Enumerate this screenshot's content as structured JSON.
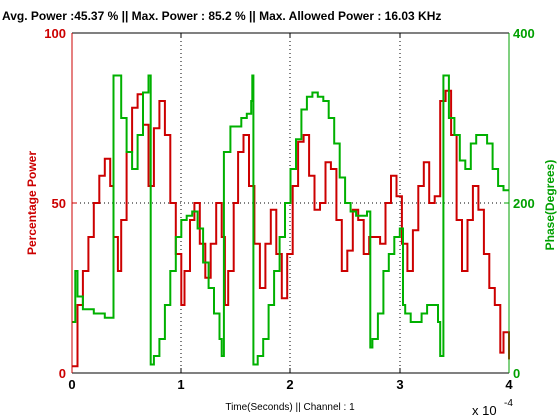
{
  "chart_data": {
    "type": "line",
    "title": "Avg. Power :45.37 %  || Max. Power : 85.2 %  || Max. Allowed Power : 16.03 KHz",
    "xlabel": "Time(Seconds) || Channel : 1",
    "x_exponent_label": "x 10",
    "x_exponent_power": "-4",
    "ylabel_left": "Percentage Power",
    "ylabel_right": "Phase(Degrees)",
    "xlim": [
      0,
      4
    ],
    "ylim_left": [
      0,
      100
    ],
    "ylim_right": [
      0,
      400
    ],
    "x_ticks": [
      "0",
      "1",
      "2",
      "3",
      "4"
    ],
    "y_left_ticks": [
      "0",
      "50",
      "100"
    ],
    "y_right_ticks": [
      "0",
      "200",
      "400"
    ],
    "grid": "dotted",
    "colors": {
      "power": "#cc0000",
      "phase": "#00b000",
      "axes": "#000000"
    },
    "series": [
      {
        "axis": "left",
        "points": [
          [
            0.0,
            2
          ],
          [
            0.05,
            20
          ],
          [
            0.1,
            30
          ],
          [
            0.15,
            40
          ],
          [
            0.2,
            50
          ],
          [
            0.25,
            58
          ],
          [
            0.3,
            63
          ],
          [
            0.35,
            55
          ],
          [
            0.38,
            40
          ],
          [
            0.42,
            30
          ],
          [
            0.45,
            45
          ],
          [
            0.5,
            65
          ],
          [
            0.55,
            78
          ],
          [
            0.6,
            82
          ],
          [
            0.65,
            73
          ],
          [
            0.7,
            55
          ],
          [
            0.75,
            72
          ],
          [
            0.8,
            80
          ],
          [
            0.85,
            70
          ],
          [
            0.9,
            50
          ],
          [
            0.95,
            35
          ],
          [
            1.0,
            20
          ],
          [
            1.03,
            30
          ],
          [
            1.08,
            45
          ],
          [
            1.12,
            50
          ],
          [
            1.17,
            38
          ],
          [
            1.22,
            28
          ],
          [
            1.27,
            38
          ],
          [
            1.32,
            50
          ],
          [
            1.37,
            40
          ],
          [
            1.4,
            20
          ],
          [
            1.43,
            30
          ],
          [
            1.48,
            50
          ],
          [
            1.52,
            65
          ],
          [
            1.57,
            70
          ],
          [
            1.62,
            55
          ],
          [
            1.67,
            38
          ],
          [
            1.72,
            25
          ],
          [
            1.77,
            38
          ],
          [
            1.82,
            48
          ],
          [
            1.87,
            35
          ],
          [
            1.92,
            22
          ],
          [
            1.97,
            35
          ],
          [
            2.02,
            55
          ],
          [
            2.07,
            68
          ],
          [
            2.12,
            70
          ],
          [
            2.17,
            58
          ],
          [
            2.22,
            48
          ],
          [
            2.27,
            50
          ],
          [
            2.32,
            62
          ],
          [
            2.37,
            60
          ],
          [
            2.42,
            45
          ],
          [
            2.47,
            30
          ],
          [
            2.52,
            36
          ],
          [
            2.57,
            48
          ],
          [
            2.62,
            45
          ],
          [
            2.67,
            35
          ],
          [
            2.72,
            40
          ],
          [
            2.77,
            40
          ],
          [
            2.82,
            38
          ],
          [
            2.87,
            50
          ],
          [
            2.92,
            58
          ],
          [
            2.97,
            52
          ],
          [
            3.02,
            38
          ],
          [
            3.07,
            30
          ],
          [
            3.12,
            42
          ],
          [
            3.17,
            55
          ],
          [
            3.22,
            62
          ],
          [
            3.27,
            50
          ],
          [
            3.32,
            52
          ],
          [
            3.37,
            80
          ],
          [
            3.42,
            83
          ],
          [
            3.47,
            70
          ],
          [
            3.52,
            45
          ],
          [
            3.57,
            30
          ],
          [
            3.62,
            45
          ],
          [
            3.67,
            55
          ],
          [
            3.72,
            48
          ],
          [
            3.77,
            35
          ],
          [
            3.82,
            25
          ],
          [
            3.87,
            20
          ],
          [
            3.92,
            6
          ],
          [
            3.95,
            12
          ],
          [
            4.0,
            4
          ]
        ]
      },
      {
        "axis": "right",
        "points": [
          [
            0.0,
            60
          ],
          [
            0.02,
            60
          ],
          [
            0.03,
            120
          ],
          [
            0.05,
            90
          ],
          [
            0.1,
            75
          ],
          [
            0.2,
            70
          ],
          [
            0.3,
            65
          ],
          [
            0.37,
            65
          ],
          [
            0.38,
            350
          ],
          [
            0.45,
            300
          ],
          [
            0.5,
            260
          ],
          [
            0.55,
            240
          ],
          [
            0.6,
            280
          ],
          [
            0.65,
            330
          ],
          [
            0.7,
            350
          ],
          [
            0.72,
            10
          ],
          [
            0.73,
            10
          ],
          [
            0.75,
            20
          ],
          [
            0.8,
            40
          ],
          [
            0.85,
            80
          ],
          [
            0.9,
            120
          ],
          [
            0.95,
            160
          ],
          [
            1.0,
            180
          ],
          [
            1.05,
            185
          ],
          [
            1.1,
            190
          ],
          [
            1.15,
            170
          ],
          [
            1.2,
            130
          ],
          [
            1.25,
            100
          ],
          [
            1.3,
            70
          ],
          [
            1.35,
            40
          ],
          [
            1.37,
            20
          ],
          [
            1.38,
            20
          ],
          [
            1.39,
            260
          ],
          [
            1.45,
            290
          ],
          [
            1.5,
            290
          ],
          [
            1.55,
            300
          ],
          [
            1.6,
            305
          ],
          [
            1.64,
            320
          ],
          [
            1.65,
            350
          ],
          [
            1.66,
            10
          ],
          [
            1.7,
            20
          ],
          [
            1.75,
            40
          ],
          [
            1.8,
            80
          ],
          [
            1.85,
            120
          ],
          [
            1.9,
            160
          ],
          [
            1.95,
            200
          ],
          [
            2.0,
            240
          ],
          [
            2.05,
            275
          ],
          [
            2.1,
            310
          ],
          [
            2.15,
            325
          ],
          [
            2.2,
            330
          ],
          [
            2.25,
            325
          ],
          [
            2.3,
            320
          ],
          [
            2.35,
            300
          ],
          [
            2.4,
            270
          ],
          [
            2.45,
            230
          ],
          [
            2.5,
            200
          ],
          [
            2.55,
            190
          ],
          [
            2.6,
            185
          ],
          [
            2.65,
            185
          ],
          [
            2.7,
            190
          ],
          [
            2.72,
            190
          ],
          [
            2.73,
            30
          ],
          [
            2.75,
            40
          ],
          [
            2.8,
            70
          ],
          [
            2.85,
            120
          ],
          [
            2.9,
            140
          ],
          [
            2.95,
            160
          ],
          [
            3.0,
            170
          ],
          [
            3.02,
            170
          ],
          [
            3.03,
            80
          ],
          [
            3.05,
            70
          ],
          [
            3.1,
            60
          ],
          [
            3.15,
            60
          ],
          [
            3.2,
            70
          ],
          [
            3.25,
            80
          ],
          [
            3.3,
            80
          ],
          [
            3.35,
            60
          ],
          [
            3.37,
            20
          ],
          [
            3.38,
            20
          ],
          [
            3.4,
            350
          ],
          [
            3.45,
            300
          ],
          [
            3.5,
            280
          ],
          [
            3.55,
            250
          ],
          [
            3.6,
            240
          ],
          [
            3.65,
            270
          ],
          [
            3.7,
            280
          ],
          [
            3.75,
            280
          ],
          [
            3.8,
            270
          ],
          [
            3.85,
            240
          ],
          [
            3.9,
            220
          ],
          [
            3.95,
            215
          ],
          [
            4.0,
            215
          ]
        ]
      }
    ]
  }
}
